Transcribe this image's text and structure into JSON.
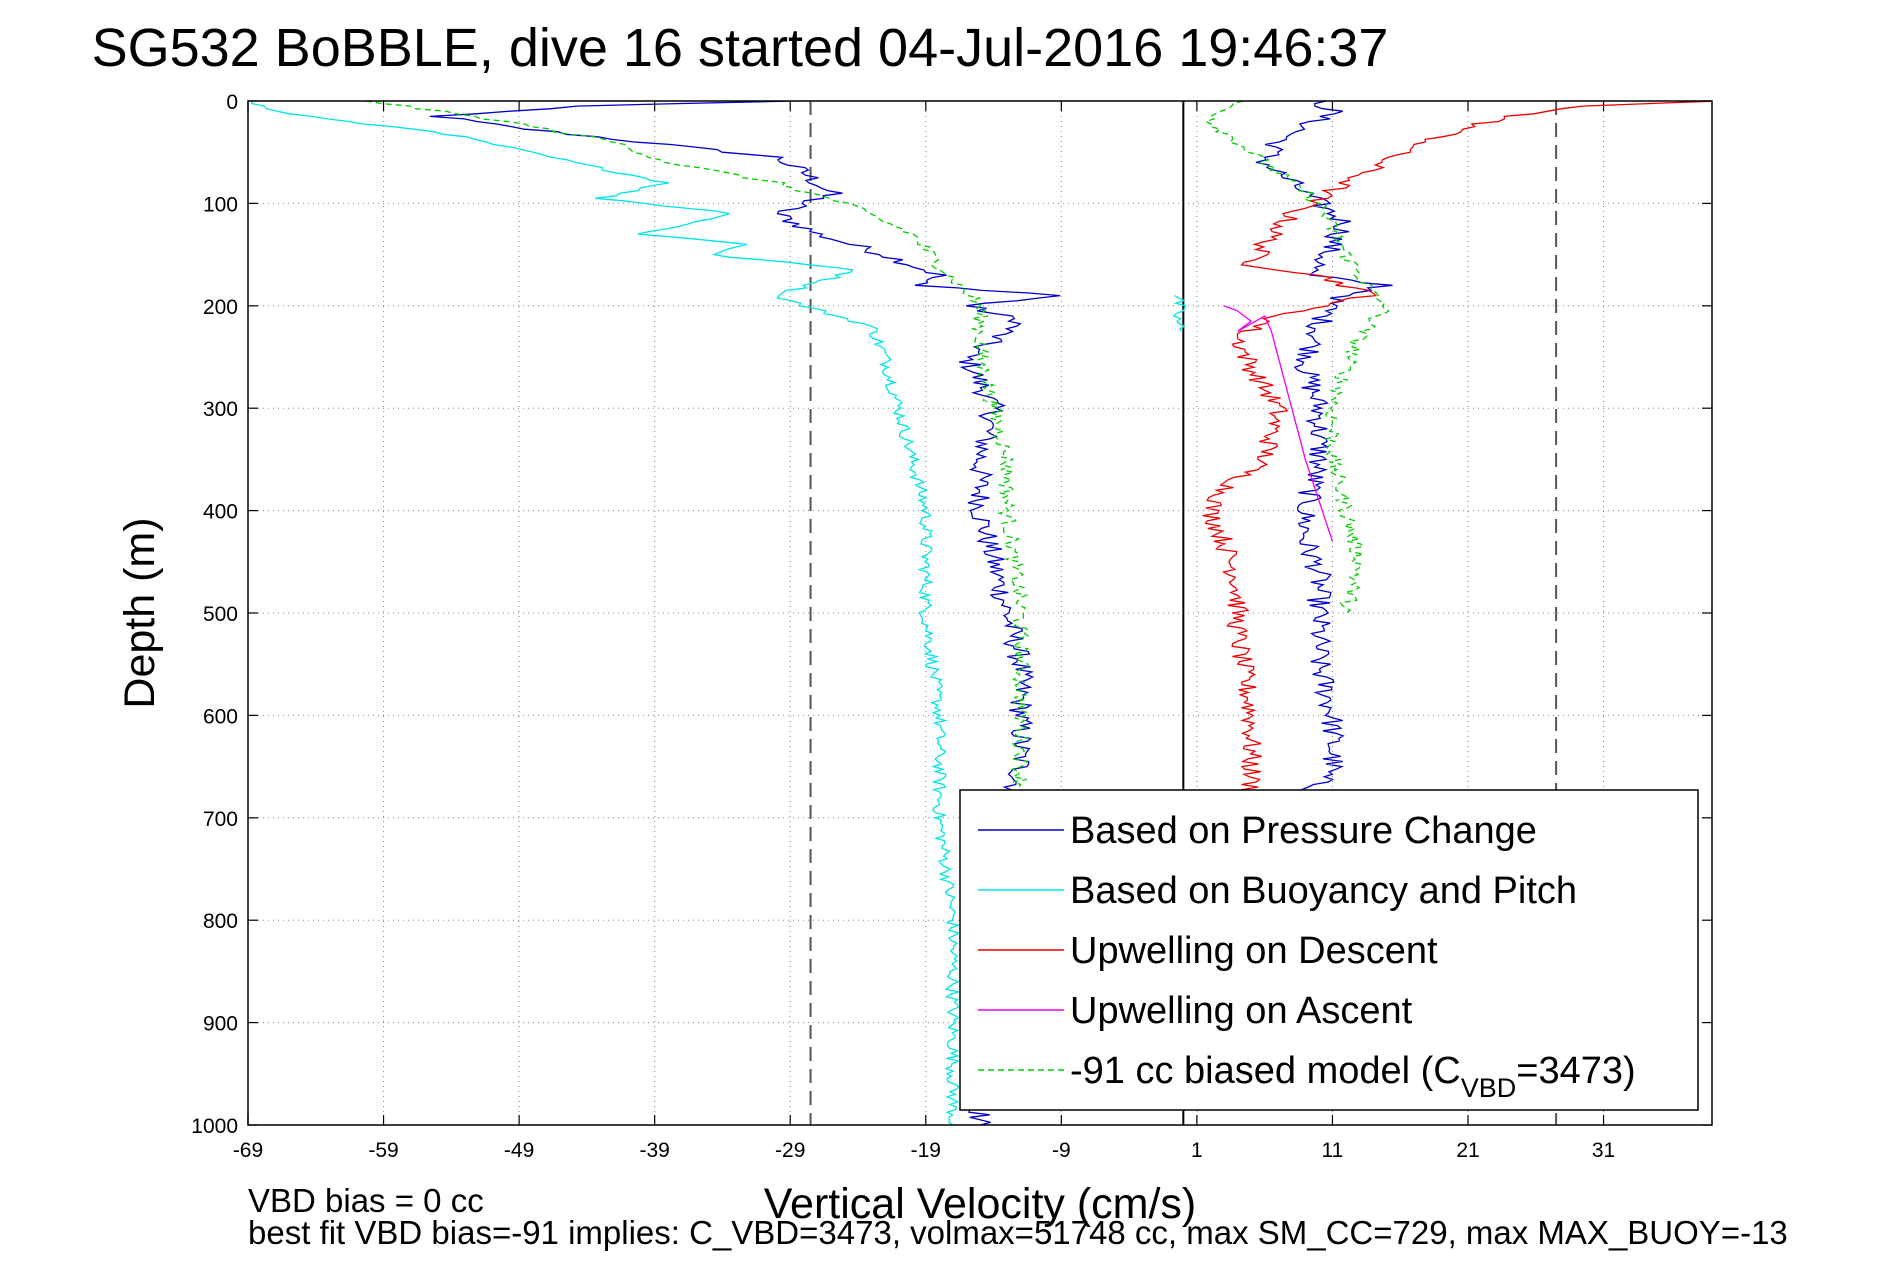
{
  "chart_data": {
    "type": "line",
    "title": "SG532 BoBBLE, dive 16 started 04-Jul-2016 19:46:37",
    "xlabel": "Vertical Velocity (cm/s)",
    "ylabel": "Depth (m)",
    "xlim": [
      -69,
      39
    ],
    "ylim": [
      0,
      1000
    ],
    "y_reversed": true,
    "grid": "dotted",
    "xticks": [
      -69,
      -59,
      -49,
      -39,
      -29,
      -19,
      -9,
      1,
      11,
      21,
      31
    ],
    "xtick_labels": [
      "-69",
      "-59",
      "-49",
      "-39",
      "-29",
      "-19",
      "-9",
      "1",
      "11",
      "21",
      "31"
    ],
    "yticks": [
      0,
      100,
      200,
      300,
      400,
      500,
      600,
      700,
      800,
      900,
      1000
    ],
    "ytick_labels": [
      "0",
      "100",
      "200",
      "300",
      "400",
      "500",
      "600",
      "700",
      "800",
      "900",
      "1000"
    ],
    "reference_lines": [
      {
        "x": 0,
        "style": "solid",
        "color": "#000000"
      },
      {
        "x": -27.5,
        "style": "dashed",
        "color": "#555555"
      },
      {
        "x": 27.5,
        "style": "dashed",
        "color": "#555555"
      }
    ],
    "legend_position": "lower-right",
    "series": [
      {
        "name": "Based on Pressure Change",
        "color": "#0000cc",
        "style": "solid",
        "noise": 0.9,
        "segments": [
          {
            "x": [
              -29,
              -45,
              -55,
              -50,
              -40,
              -30,
              -28,
              -26,
              -30,
              -27,
              -22,
              -18,
              -20,
              -14,
              -9,
              -16,
              -12,
              -16,
              -14,
              -15,
              -15,
              -14,
              -13,
              -12,
              -12,
              -12,
              -13,
              -14,
              -15,
              -15
            ],
            "y": [
              0,
              5,
              15,
              25,
              40,
              55,
              70,
              90,
              110,
              130,
              150,
              170,
              180,
              185,
              190,
              200,
              215,
              250,
              300,
              350,
              400,
              450,
              500,
              550,
              600,
              650,
              700,
              800,
              900,
              1000
            ]
          },
          {
            "x": [
              10,
              11,
              9,
              7,
              6,
              8,
              10,
              12,
              11,
              10,
              9,
              12,
              15,
              11,
              10,
              9,
              10,
              10,
              9,
              9,
              10,
              10,
              10,
              11,
              11,
              9
            ],
            "y": [
              0,
              10,
              25,
              40,
              60,
              80,
              100,
              120,
              140,
              160,
              170,
              175,
              180,
              195,
              220,
              260,
              300,
              350,
              400,
              430,
              460,
              500,
              550,
              600,
              650,
              680
            ]
          }
        ]
      },
      {
        "name": "Based on Buoyancy and Pitch",
        "color": "#00e5e5",
        "style": "solid",
        "noise": 0.5,
        "segments": [
          {
            "x": [
              -69,
              -67,
              -62,
              -55,
              -50,
              -45,
              -38,
              -43,
              -33,
              -40,
              -32,
              -35,
              -24,
              -30,
              -28,
              -23,
              -22,
              -21,
              -20,
              -19,
              -19,
              -18,
              -18,
              -17,
              -17,
              -17
            ],
            "y": [
              0,
              10,
              20,
              30,
              45,
              60,
              80,
              95,
              110,
              130,
              140,
              150,
              165,
              190,
              200,
              220,
              250,
              300,
              350,
              400,
              500,
              600,
              700,
              800,
              900,
              1000
            ]
          },
          {
            "x": [
              -0.5,
              -0.3,
              -0.5,
              -0.2
            ],
            "y": [
              190,
              200,
              210,
              225
            ]
          }
        ]
      },
      {
        "name": "Upwelling on Descent",
        "color": "#ee0000",
        "style": "solid",
        "noise": 0.8,
        "segments": [
          {
            "x": [
              39,
              30,
              24,
              20,
              16,
              12,
              8,
              6,
              5,
              10,
              14,
              10,
              7,
              4,
              5,
              7,
              6,
              3,
              2,
              3,
              4,
              4,
              5,
              5,
              6
            ],
            "y": [
              0,
              5,
              15,
              30,
              50,
              80,
              110,
              140,
              160,
              170,
              190,
              200,
              210,
              230,
              260,
              300,
              350,
              380,
              400,
              430,
              470,
              520,
              600,
              700,
              800
            ]
          }
        ]
      },
      {
        "name": "Upwelling on Ascent",
        "color": "#ee00ee",
        "style": "solid",
        "noise": 0,
        "segments": [
          {
            "x": [
              3,
              4,
              5,
              4,
              6,
              6.5,
              9,
              11
            ],
            "y": [
              200,
              205,
              215,
              225,
              210,
              225,
              350,
              430
            ]
          }
        ]
      },
      {
        "name": "-91 cc biased model (C_VBD=3473)",
        "color": "#00cc00",
        "style": "dashed",
        "noise": 0.6,
        "segments": [
          {
            "x": [
              -60,
              -55,
              -50,
              -42,
              -38,
              -30,
              -25,
              -20,
              -18,
              -15,
              -15,
              -14,
              -13,
              -13,
              -12,
              -12,
              -12,
              -12,
              -12
            ],
            "y": [
              0,
              10,
              20,
              40,
              60,
              80,
              100,
              130,
              160,
              200,
              250,
              300,
              350,
              400,
              500,
              600,
              700,
              800,
              900
            ]
          },
          {
            "x": [
              4,
              3,
              2,
              4,
              6,
              8,
              10,
              12,
              14,
              15,
              13,
              12,
              11,
              11,
              12,
              13,
              12
            ],
            "y": [
              0,
              10,
              20,
              40,
              60,
              80,
              100,
              150,
              190,
              200,
              230,
              260,
              300,
              350,
              400,
              450,
              500
            ]
          }
        ]
      }
    ]
  },
  "legend": {
    "items": [
      {
        "label": "Based on Pressure Change",
        "color": "#0000cc",
        "dashed": false
      },
      {
        "label": "Based on Buoyancy and Pitch",
        "color": "#00e5e5",
        "dashed": false
      },
      {
        "label": "Upwelling on Descent",
        "color": "#ee0000",
        "dashed": false
      },
      {
        "label": "Upwelling on Ascent",
        "color": "#ee00ee",
        "dashed": false
      },
      {
        "label": "-91 cc biased model (C",
        "sub": "VBD",
        "suffix": "=3473)",
        "color": "#00cc00",
        "dashed": true
      }
    ]
  },
  "notes": {
    "line1": "VBD bias = 0 cc",
    "line2": "best fit VBD bias=-91 implies: C_VBD=3473, volmax=51748 cc, max SM_CC=729, max MAX_BUOY=-13"
  }
}
